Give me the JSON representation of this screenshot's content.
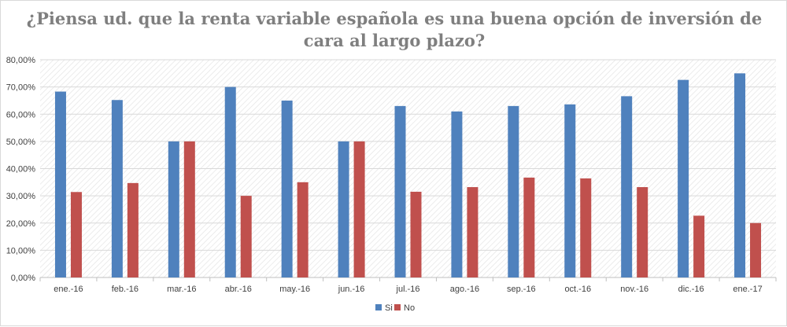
{
  "chart_data": {
    "type": "bar",
    "title": [
      "¿Piensa ud. que la renta variable española es una buena opción de inversión de",
      "cara al largo plazo?"
    ],
    "categories": [
      "ene.-16",
      "feb.-16",
      "mar.-16",
      "abr.-16",
      "may.-16",
      "jun.-16",
      "jul.-16",
      "ago.-16",
      "sep.-16",
      "oct.-16",
      "nov.-16",
      "dic.-16",
      "ene.-17"
    ],
    "series": [
      {
        "name": "Si",
        "color": "#4f81bd",
        "values": [
          68.3,
          65.2,
          50.0,
          70.0,
          65.0,
          50.0,
          63.0,
          61.0,
          63.0,
          63.6,
          66.6,
          72.6,
          75.0
        ]
      },
      {
        "name": "No",
        "color": "#c0504d",
        "values": [
          31.4,
          34.7,
          50.0,
          30.0,
          35.0,
          50.0,
          31.5,
          33.2,
          36.7,
          36.4,
          33.2,
          22.7,
          20.0
        ]
      }
    ],
    "ylim": [
      0,
      80
    ],
    "yticks": [
      "0,00%",
      "10,00%",
      "20,00%",
      "30,00%",
      "40,00%",
      "50,00%",
      "60,00%",
      "70,00%",
      "80,00%"
    ],
    "xlabel": "",
    "ylabel": "",
    "legend_position": "bottom"
  }
}
